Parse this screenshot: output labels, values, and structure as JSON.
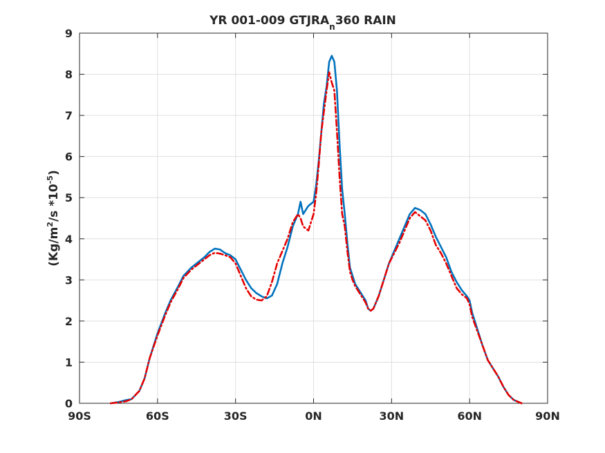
{
  "chart_data": {
    "type": "line",
    "title_main": "YR 001-009 GTJRA",
    "title_sub": "n",
    "title_tail": "360 RAIN",
    "ylabel_part1": "(Kg/m",
    "ylabel_sup1": "2",
    "ylabel_part2": "/s   *10",
    "ylabel_sup2": "-5",
    "ylabel_part3": ")",
    "xlim": [
      -90,
      90
    ],
    "ylim": [
      0,
      9
    ],
    "grid": true,
    "x_ticks": [
      {
        "value": -90,
        "label": "90S"
      },
      {
        "value": -60,
        "label": "60S"
      },
      {
        "value": -30,
        "label": "30S"
      },
      {
        "value": 0,
        "label": "0N"
      },
      {
        "value": 30,
        "label": "30N"
      },
      {
        "value": 60,
        "label": "60N"
      },
      {
        "value": 90,
        "label": "90N"
      }
    ],
    "y_ticks": [
      {
        "value": 0,
        "label": "0"
      },
      {
        "value": 1,
        "label": "1"
      },
      {
        "value": 2,
        "label": "2"
      },
      {
        "value": 3,
        "label": "3"
      },
      {
        "value": 4,
        "label": "4"
      },
      {
        "value": 5,
        "label": "5"
      },
      {
        "value": 6,
        "label": "6"
      },
      {
        "value": 7,
        "label": "7"
      },
      {
        "value": 8,
        "label": "8"
      },
      {
        "value": 9,
        "label": "9"
      }
    ],
    "series": [
      {
        "color": "#0072BD",
        "style": "solid",
        "points": [
          [
            -78,
            0.0
          ],
          [
            -75,
            0.03
          ],
          [
            -72,
            0.08
          ],
          [
            -70,
            0.1
          ],
          [
            -67,
            0.3
          ],
          [
            -65,
            0.6
          ],
          [
            -63,
            1.1
          ],
          [
            -60,
            1.7
          ],
          [
            -57,
            2.2
          ],
          [
            -55,
            2.5
          ],
          [
            -52,
            2.85
          ],
          [
            -50,
            3.1
          ],
          [
            -47,
            3.3
          ],
          [
            -45,
            3.4
          ],
          [
            -42,
            3.55
          ],
          [
            -40,
            3.68
          ],
          [
            -38,
            3.76
          ],
          [
            -36,
            3.74
          ],
          [
            -34,
            3.65
          ],
          [
            -32,
            3.6
          ],
          [
            -30,
            3.5
          ],
          [
            -28,
            3.25
          ],
          [
            -26,
            3.0
          ],
          [
            -24,
            2.8
          ],
          [
            -22,
            2.68
          ],
          [
            -20,
            2.6
          ],
          [
            -18,
            2.55
          ],
          [
            -16,
            2.62
          ],
          [
            -14,
            2.9
          ],
          [
            -12,
            3.4
          ],
          [
            -10,
            3.8
          ],
          [
            -8,
            4.3
          ],
          [
            -6,
            4.6
          ],
          [
            -5,
            4.9
          ],
          [
            -4,
            4.6
          ],
          [
            -3,
            4.7
          ],
          [
            -2,
            4.8
          ],
          [
            0,
            4.9
          ],
          [
            1,
            5.3
          ],
          [
            2,
            5.9
          ],
          [
            3,
            6.6
          ],
          [
            4,
            7.3
          ],
          [
            5,
            7.7
          ],
          [
            6,
            8.3
          ],
          [
            7,
            8.45
          ],
          [
            8,
            8.3
          ],
          [
            9,
            7.6
          ],
          [
            10,
            6.3
          ],
          [
            11,
            5.2
          ],
          [
            12,
            4.6
          ],
          [
            13,
            3.9
          ],
          [
            14,
            3.3
          ],
          [
            15,
            3.1
          ],
          [
            16,
            2.9
          ],
          [
            18,
            2.7
          ],
          [
            20,
            2.5
          ],
          [
            21,
            2.3
          ],
          [
            22,
            2.25
          ],
          [
            23,
            2.3
          ],
          [
            25,
            2.6
          ],
          [
            27,
            3.0
          ],
          [
            29,
            3.4
          ],
          [
            31,
            3.7
          ],
          [
            33,
            4.0
          ],
          [
            35,
            4.3
          ],
          [
            37,
            4.6
          ],
          [
            39,
            4.75
          ],
          [
            41,
            4.7
          ],
          [
            43,
            4.6
          ],
          [
            45,
            4.35
          ],
          [
            47,
            4.05
          ],
          [
            49,
            3.8
          ],
          [
            51,
            3.55
          ],
          [
            53,
            3.2
          ],
          [
            55,
            2.95
          ],
          [
            57,
            2.75
          ],
          [
            59,
            2.6
          ],
          [
            60,
            2.5
          ],
          [
            61,
            2.2
          ],
          [
            63,
            1.8
          ],
          [
            65,
            1.4
          ],
          [
            67,
            1.05
          ],
          [
            69,
            0.85
          ],
          [
            71,
            0.65
          ],
          [
            73,
            0.4
          ],
          [
            75,
            0.2
          ],
          [
            77,
            0.08
          ],
          [
            80,
            0.0
          ]
        ]
      },
      {
        "color": "#E60000",
        "style": "dashed",
        "points": [
          [
            -78,
            0.0
          ],
          [
            -75,
            0.02
          ],
          [
            -72,
            0.05
          ],
          [
            -70,
            0.1
          ],
          [
            -67,
            0.3
          ],
          [
            -65,
            0.6
          ],
          [
            -63,
            1.1
          ],
          [
            -60,
            1.65
          ],
          [
            -57,
            2.15
          ],
          [
            -55,
            2.45
          ],
          [
            -52,
            2.8
          ],
          [
            -50,
            3.05
          ],
          [
            -47,
            3.25
          ],
          [
            -45,
            3.35
          ],
          [
            -42,
            3.5
          ],
          [
            -40,
            3.6
          ],
          [
            -38,
            3.66
          ],
          [
            -36,
            3.64
          ],
          [
            -34,
            3.6
          ],
          [
            -32,
            3.55
          ],
          [
            -30,
            3.4
          ],
          [
            -28,
            3.1
          ],
          [
            -26,
            2.8
          ],
          [
            -24,
            2.6
          ],
          [
            -22,
            2.52
          ],
          [
            -20,
            2.5
          ],
          [
            -18,
            2.6
          ],
          [
            -16,
            2.95
          ],
          [
            -14,
            3.4
          ],
          [
            -12,
            3.7
          ],
          [
            -10,
            4.0
          ],
          [
            -8,
            4.4
          ],
          [
            -6,
            4.6
          ],
          [
            -5,
            4.5
          ],
          [
            -4,
            4.3
          ],
          [
            -3,
            4.25
          ],
          [
            -2,
            4.2
          ],
          [
            -1,
            4.4
          ],
          [
            0,
            4.6
          ],
          [
            1,
            5.1
          ],
          [
            2,
            5.8
          ],
          [
            3,
            6.6
          ],
          [
            4,
            7.1
          ],
          [
            5,
            7.6
          ],
          [
            6,
            8.05
          ],
          [
            7,
            7.8
          ],
          [
            8,
            7.6
          ],
          [
            9,
            6.6
          ],
          [
            10,
            5.5
          ],
          [
            11,
            4.6
          ],
          [
            12,
            4.3
          ],
          [
            13,
            3.7
          ],
          [
            14,
            3.2
          ],
          [
            15,
            3.0
          ],
          [
            16,
            2.85
          ],
          [
            18,
            2.65
          ],
          [
            20,
            2.45
          ],
          [
            21,
            2.3
          ],
          [
            22,
            2.25
          ],
          [
            23,
            2.3
          ],
          [
            25,
            2.6
          ],
          [
            27,
            3.0
          ],
          [
            29,
            3.4
          ],
          [
            31,
            3.65
          ],
          [
            33,
            3.9
          ],
          [
            35,
            4.2
          ],
          [
            37,
            4.5
          ],
          [
            39,
            4.65
          ],
          [
            41,
            4.55
          ],
          [
            43,
            4.45
          ],
          [
            45,
            4.2
          ],
          [
            47,
            3.85
          ],
          [
            49,
            3.65
          ],
          [
            51,
            3.4
          ],
          [
            53,
            3.1
          ],
          [
            55,
            2.8
          ],
          [
            57,
            2.65
          ],
          [
            59,
            2.55
          ],
          [
            60,
            2.4
          ],
          [
            61,
            2.1
          ],
          [
            63,
            1.75
          ],
          [
            65,
            1.4
          ],
          [
            67,
            1.05
          ],
          [
            69,
            0.85
          ],
          [
            71,
            0.65
          ],
          [
            73,
            0.4
          ],
          [
            75,
            0.2
          ],
          [
            77,
            0.08
          ],
          [
            80,
            0.0
          ]
        ]
      }
    ]
  }
}
